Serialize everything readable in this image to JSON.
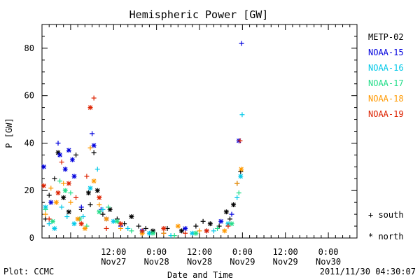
{
  "chart_data": {
    "type": "scatter",
    "title": "Hemispheric Power [GW]",
    "ylabel": "P [GW]",
    "xlabel": "Date and Time",
    "xlim": [
      "2011-11-26T16:00",
      "2011-11-30T08:00"
    ],
    "ylim": [
      0,
      90
    ],
    "y_ticks": [
      0,
      20,
      40,
      60,
      80
    ],
    "x_ticks": [
      {
        "t": "2011-11-27T12:00",
        "time": "12:00",
        "date": "Nov27"
      },
      {
        "t": "2011-11-28T00:00",
        "time": "0:00",
        "date": "Nov28"
      },
      {
        "t": "2011-11-28T12:00",
        "time": "12:00",
        "date": "Nov28"
      },
      {
        "t": "2011-11-29T00:00",
        "time": "0:00",
        "date": "Nov29"
      },
      {
        "t": "2011-11-29T12:00",
        "time": "12:00",
        "date": "Nov29"
      },
      {
        "t": "2011-11-30T00:00",
        "time": "0:00",
        "date": "Nov30"
      }
    ],
    "grid": false,
    "legend_position": "right",
    "marker_legend": [
      {
        "symbol": "+",
        "label": "south"
      },
      {
        "symbol": "*",
        "label": "north"
      }
    ],
    "series": [
      {
        "name": "METP-02",
        "color": "#000000",
        "points": [
          {
            "t": "2011-11-26T17:00",
            "y": 8,
            "m": "+"
          },
          {
            "t": "2011-11-26T18:00",
            "y": 18,
            "m": "+"
          },
          {
            "t": "2011-11-26T19:30",
            "y": 25,
            "m": "+"
          },
          {
            "t": "2011-11-26T20:30",
            "y": 36,
            "m": "*"
          },
          {
            "t": "2011-11-26T22:00",
            "y": 17,
            "m": "*"
          },
          {
            "t": "2011-11-26T23:30",
            "y": 11,
            "m": "*"
          },
          {
            "t": "2011-11-27T01:30",
            "y": 35,
            "m": "+"
          },
          {
            "t": "2011-11-27T03:00",
            "y": 12,
            "m": "+"
          },
          {
            "t": "2011-11-27T05:00",
            "y": 19,
            "m": "*"
          },
          {
            "t": "2011-11-27T05:30",
            "y": 14,
            "m": "+"
          },
          {
            "t": "2011-11-27T06:30",
            "y": 36,
            "m": "+"
          },
          {
            "t": "2011-11-27T07:30",
            "y": 20,
            "m": "*"
          },
          {
            "t": "2011-11-27T09:00",
            "y": 10,
            "m": "+"
          },
          {
            "t": "2011-11-27T11:00",
            "y": 12,
            "m": "*"
          },
          {
            "t": "2011-11-27T13:00",
            "y": 8,
            "m": "+"
          },
          {
            "t": "2011-11-27T15:00",
            "y": 6,
            "m": "+"
          },
          {
            "t": "2011-11-27T17:00",
            "y": 9,
            "m": "*"
          },
          {
            "t": "2011-11-27T19:00",
            "y": 5,
            "m": "+"
          },
          {
            "t": "2011-11-27T21:00",
            "y": 4,
            "m": "+"
          },
          {
            "t": "2011-11-27T23:00",
            "y": 3,
            "m": "*"
          },
          {
            "t": "2011-11-28T03:00",
            "y": 4,
            "m": "+"
          },
          {
            "t": "2011-11-28T07:00",
            "y": 3,
            "m": "*"
          },
          {
            "t": "2011-11-28T11:00",
            "y": 5,
            "m": "+"
          },
          {
            "t": "2011-11-28T13:00",
            "y": 7,
            "m": "+"
          },
          {
            "t": "2011-11-28T15:00",
            "y": 6,
            "m": "*"
          },
          {
            "t": "2011-11-28T17:30",
            "y": 5,
            "m": "+"
          },
          {
            "t": "2011-11-28T19:30",
            "y": 11,
            "m": "*"
          },
          {
            "t": "2011-11-28T20:30",
            "y": 8,
            "m": "+"
          },
          {
            "t": "2011-11-28T21:30",
            "y": 14,
            "m": "*"
          },
          {
            "t": "2011-11-28T22:30",
            "y": 23,
            "m": "+"
          },
          {
            "t": "2011-11-28T23:30",
            "y": 28,
            "m": "+"
          }
        ]
      },
      {
        "name": "NOAA-15",
        "color": "#0000dd",
        "points": [
          {
            "t": "2011-11-26T16:30",
            "y": 30,
            "m": "*"
          },
          {
            "t": "2011-11-26T18:30",
            "y": 15,
            "m": "*"
          },
          {
            "t": "2011-11-26T20:30",
            "y": 40,
            "m": "+"
          },
          {
            "t": "2011-11-26T21:00",
            "y": 35,
            "m": "*"
          },
          {
            "t": "2011-11-26T22:30",
            "y": 29,
            "m": "*"
          },
          {
            "t": "2011-11-26T23:30",
            "y": 37,
            "m": "*"
          },
          {
            "t": "2011-11-27T00:30",
            "y": 33,
            "m": "*"
          },
          {
            "t": "2011-11-27T01:00",
            "y": 26,
            "m": "*"
          },
          {
            "t": "2011-11-27T03:00",
            "y": 13,
            "m": "+"
          },
          {
            "t": "2011-11-27T06:00",
            "y": 44,
            "m": "+"
          },
          {
            "t": "2011-11-27T06:30",
            "y": 39,
            "m": "*"
          },
          {
            "t": "2011-11-27T08:30",
            "y": 12,
            "m": "+"
          },
          {
            "t": "2011-11-27T10:00",
            "y": 8,
            "m": "*"
          },
          {
            "t": "2011-11-27T14:00",
            "y": 5,
            "m": "+"
          },
          {
            "t": "2011-11-27T20:00",
            "y": 3,
            "m": "*"
          },
          {
            "t": "2011-11-28T02:00",
            "y": 2,
            "m": "+"
          },
          {
            "t": "2011-11-28T08:00",
            "y": 4,
            "m": "*"
          },
          {
            "t": "2011-11-28T14:00",
            "y": 3,
            "m": "+"
          },
          {
            "t": "2011-11-28T18:00",
            "y": 7,
            "m": "*"
          },
          {
            "t": "2011-11-28T21:00",
            "y": 10,
            "m": "+"
          },
          {
            "t": "2011-11-28T23:00",
            "y": 41,
            "m": "*"
          },
          {
            "t": "2011-11-28T23:45",
            "y": 82,
            "m": "+"
          }
        ]
      },
      {
        "name": "NOAA-16",
        "color": "#00c8e8",
        "points": [
          {
            "t": "2011-11-26T17:00",
            "y": 13,
            "m": "*"
          },
          {
            "t": "2011-11-26T18:00",
            "y": 6,
            "m": "+"
          },
          {
            "t": "2011-11-26T19:30",
            "y": 4,
            "m": "*"
          },
          {
            "t": "2011-11-26T21:30",
            "y": 13,
            "m": "+"
          },
          {
            "t": "2011-11-26T23:00",
            "y": 9,
            "m": "+"
          },
          {
            "t": "2011-11-27T01:00",
            "y": 6,
            "m": "*"
          },
          {
            "t": "2011-11-27T03:30",
            "y": 9,
            "m": "+"
          },
          {
            "t": "2011-11-27T05:30",
            "y": 21,
            "m": "*"
          },
          {
            "t": "2011-11-27T07:30",
            "y": 29,
            "m": "+"
          },
          {
            "t": "2011-11-27T09:00",
            "y": 12,
            "m": "+"
          },
          {
            "t": "2011-11-27T12:00",
            "y": 7,
            "m": "*"
          },
          {
            "t": "2011-11-27T16:00",
            "y": 4,
            "m": "+"
          },
          {
            "t": "2011-11-27T22:00",
            "y": 2,
            "m": "*"
          },
          {
            "t": "2011-11-28T04:00",
            "y": 1,
            "m": "+"
          },
          {
            "t": "2011-11-28T10:00",
            "y": 2,
            "m": "*"
          },
          {
            "t": "2011-11-28T16:00",
            "y": 3,
            "m": "+"
          },
          {
            "t": "2011-11-28T20:00",
            "y": 6,
            "m": "*"
          },
          {
            "t": "2011-11-28T22:30",
            "y": 17,
            "m": "+"
          },
          {
            "t": "2011-11-28T23:30",
            "y": 26,
            "m": "*"
          },
          {
            "t": "2011-11-28T23:55",
            "y": 52,
            "m": "+"
          }
        ]
      },
      {
        "name": "NOAA-17",
        "color": "#22dd88",
        "points": [
          {
            "t": "2011-11-26T17:00",
            "y": 12,
            "m": "+"
          },
          {
            "t": "2011-11-26T19:00",
            "y": 7,
            "m": "*"
          },
          {
            "t": "2011-11-26T21:00",
            "y": 24,
            "m": "+"
          },
          {
            "t": "2011-11-26T22:30",
            "y": 20,
            "m": "*"
          },
          {
            "t": "2011-11-27T00:00",
            "y": 19,
            "m": "+"
          },
          {
            "t": "2011-11-27T02:30",
            "y": 8,
            "m": "*"
          },
          {
            "t": "2011-11-27T04:30",
            "y": 5,
            "m": "+"
          },
          {
            "t": "2011-11-27T08:00",
            "y": 11,
            "m": "*"
          },
          {
            "t": "2011-11-27T10:30",
            "y": 13,
            "m": "+"
          },
          {
            "t": "2011-11-27T13:00",
            "y": 7,
            "m": "*"
          },
          {
            "t": "2011-11-27T17:00",
            "y": 3,
            "m": "+"
          },
          {
            "t": "2011-11-27T23:00",
            "y": 2,
            "m": "*"
          },
          {
            "t": "2011-11-28T05:00",
            "y": 1,
            "m": "+"
          },
          {
            "t": "2011-11-28T11:00",
            "y": 2,
            "m": "*"
          },
          {
            "t": "2011-11-28T17:00",
            "y": 4,
            "m": "+"
          },
          {
            "t": "2011-11-28T21:00",
            "y": 6,
            "m": "*"
          },
          {
            "t": "2011-11-28T23:00",
            "y": 19,
            "m": "+"
          }
        ]
      },
      {
        "name": "NOAA-18",
        "color": "#ff9900",
        "points": [
          {
            "t": "2011-11-26T17:00",
            "y": 10,
            "m": "+"
          },
          {
            "t": "2011-11-26T18:30",
            "y": 21,
            "m": "+"
          },
          {
            "t": "2011-11-26T20:00",
            "y": 15,
            "m": "*"
          },
          {
            "t": "2011-11-26T22:00",
            "y": 23,
            "m": "+"
          },
          {
            "t": "2011-11-27T00:00",
            "y": 15,
            "m": "+"
          },
          {
            "t": "2011-11-27T02:00",
            "y": 8,
            "m": "*"
          },
          {
            "t": "2011-11-27T04:00",
            "y": 4,
            "m": "*"
          },
          {
            "t": "2011-11-27T05:30",
            "y": 38,
            "m": "+"
          },
          {
            "t": "2011-11-27T06:30",
            "y": 24,
            "m": "*"
          },
          {
            "t": "2011-11-27T08:00",
            "y": 14,
            "m": "+"
          },
          {
            "t": "2011-11-27T10:00",
            "y": 8,
            "m": "*"
          },
          {
            "t": "2011-11-27T14:00",
            "y": 4,
            "m": "+"
          },
          {
            "t": "2011-11-27T20:00",
            "y": 2,
            "m": "*"
          },
          {
            "t": "2011-11-28T02:00",
            "y": 2,
            "m": "+"
          },
          {
            "t": "2011-11-28T06:00",
            "y": 5,
            "m": "*"
          },
          {
            "t": "2011-11-28T12:00",
            "y": 3,
            "m": "+"
          },
          {
            "t": "2011-11-28T19:00",
            "y": 3,
            "m": "*"
          },
          {
            "t": "2011-11-28T22:30",
            "y": 23,
            "m": "+"
          },
          {
            "t": "2011-11-28T23:40",
            "y": 29,
            "m": "*"
          }
        ]
      },
      {
        "name": "NOAA-19",
        "color": "#dd2200",
        "points": [
          {
            "t": "2011-11-26T16:30",
            "y": 22,
            "m": "*"
          },
          {
            "t": "2011-11-26T18:00",
            "y": 8,
            "m": "+"
          },
          {
            "t": "2011-11-26T20:30",
            "y": 19,
            "m": "*"
          },
          {
            "t": "2011-11-26T21:30",
            "y": 32,
            "m": "+"
          },
          {
            "t": "2011-11-26T23:30",
            "y": 23,
            "m": "*"
          },
          {
            "t": "2011-11-27T01:30",
            "y": 17,
            "m": "+"
          },
          {
            "t": "2011-11-27T03:00",
            "y": 6,
            "m": "*"
          },
          {
            "t": "2011-11-27T04:30",
            "y": 26,
            "m": "+"
          },
          {
            "t": "2011-11-27T05:30",
            "y": 55,
            "m": "*"
          },
          {
            "t": "2011-11-27T06:30",
            "y": 59,
            "m": "+"
          },
          {
            "t": "2011-11-27T08:00",
            "y": 17,
            "m": "*"
          },
          {
            "t": "2011-11-27T10:00",
            "y": 4,
            "m": "+"
          },
          {
            "t": "2011-11-27T14:00",
            "y": 6,
            "m": "*"
          },
          {
            "t": "2011-11-27T20:00",
            "y": 3,
            "m": "+"
          },
          {
            "t": "2011-11-28T02:00",
            "y": 4,
            "m": "*"
          },
          {
            "t": "2011-11-28T08:00",
            "y": 2,
            "m": "+"
          },
          {
            "t": "2011-11-28T14:00",
            "y": 3,
            "m": "*"
          },
          {
            "t": "2011-11-28T20:00",
            "y": 5,
            "m": "+"
          },
          {
            "t": "2011-11-28T23:20",
            "y": 41,
            "m": "+"
          }
        ]
      }
    ]
  },
  "footer": {
    "left": "Plot: CCMC",
    "right": "2011/11/30 04:30:07"
  }
}
